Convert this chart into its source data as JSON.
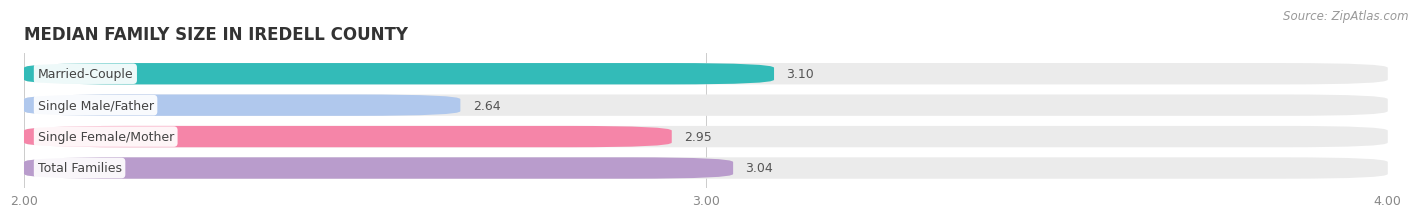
{
  "title": "MEDIAN FAMILY SIZE IN IREDELL COUNTY",
  "source": "Source: ZipAtlas.com",
  "categories": [
    "Married-Couple",
    "Single Male/Father",
    "Single Female/Mother",
    "Total Families"
  ],
  "values": [
    3.1,
    2.64,
    2.95,
    3.04
  ],
  "bar_colors": [
    "#33bbb8",
    "#b0c8ed",
    "#f585a8",
    "#b99ccc"
  ],
  "xlim": [
    2.0,
    4.0
  ],
  "xticks": [
    2.0,
    3.0,
    4.0
  ],
  "xtick_labels": [
    "2.00",
    "3.00",
    "4.00"
  ],
  "background_color": "#ffffff",
  "bar_bg_color": "#ebebeb",
  "title_fontsize": 12,
  "label_fontsize": 9,
  "value_fontsize": 9,
  "source_fontsize": 8.5,
  "bar_height": 0.68,
  "rounding_size": 0.15
}
